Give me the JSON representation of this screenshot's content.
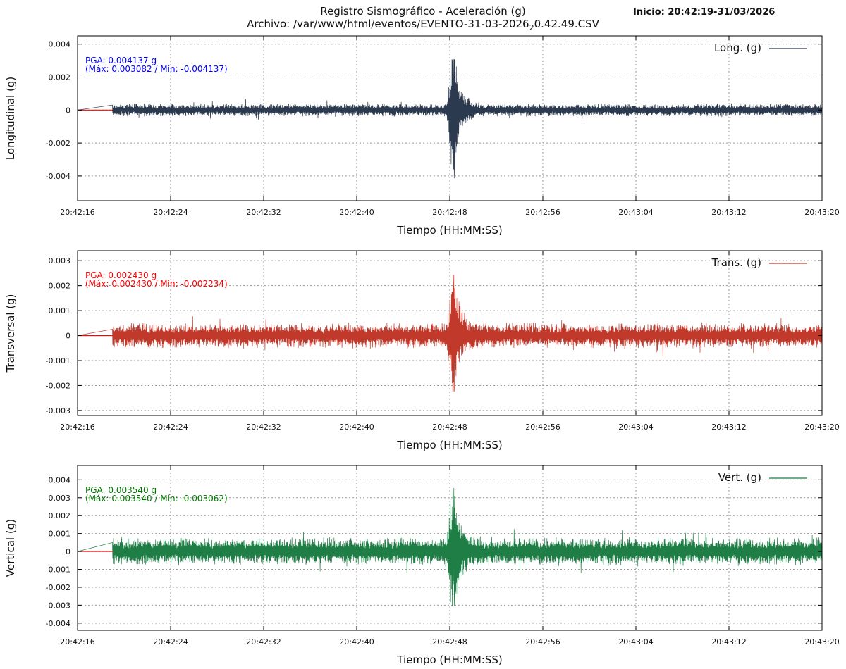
{
  "header": {
    "title": "Registro Sismográfico - Aceleración (g)",
    "file_label": "Archivo: /var/www/html/eventos/EVENTO-31-03-2026",
    "file_sub": "2",
    "file_suffix": "0.42.49.CSV",
    "start": "Inicio: 20:42:19-31/03/2026"
  },
  "chart_data": [
    {
      "type": "line",
      "ylabel": "Longitudinal (g)",
      "xlabel": "Tiempo (HH:MM:SS)",
      "legend": "Long. (g)",
      "legend_position": "top-right",
      "color": "#2b3a4e",
      "pga_text": "PGA: 0.004137 g",
      "range_text": "(Máx: 0.003082 / Mín: -0.004137)",
      "annotation_color": "#0000ff",
      "pga": 0.004137,
      "max": 0.003082,
      "min": -0.004137,
      "ylim": [
        -0.0055,
        0.0045
      ],
      "yticks": [
        0.004,
        0.002,
        0,
        -0.002,
        -0.004
      ],
      "ytick_labels": [
        "0.004",
        "0.002",
        "0",
        "-0.002",
        "-0.004"
      ],
      "noise_amplitude": 0.00035,
      "event_time_s": 32.3,
      "data_start_s": 3.0,
      "grid": true
    },
    {
      "type": "line",
      "ylabel": "Transversal (g)",
      "xlabel": "Tiempo (HH:MM:SS)",
      "legend": "Trans. (g)",
      "legend_position": "top-right",
      "color": "#c0392b",
      "pga_text": "PGA: 0.002430 g",
      "range_text": "(Máx: 0.002430 / Mín: -0.002234)",
      "annotation_color": "#ff0000",
      "pga": 0.00243,
      "max": 0.00243,
      "min": -0.002234,
      "ylim": [
        -0.0032,
        0.0034
      ],
      "yticks": [
        0.003,
        0.002,
        0.001,
        0,
        -0.001,
        -0.002,
        -0.003
      ],
      "ytick_labels": [
        "0.003",
        "0.002",
        "0.001",
        "0",
        "-0.001",
        "-0.002",
        "-0.003"
      ],
      "noise_amplitude": 0.00045,
      "event_time_s": 32.3,
      "data_start_s": 3.0,
      "grid": true
    },
    {
      "type": "line",
      "ylabel": "Vertical (g)",
      "xlabel": "Tiempo (HH:MM:SS)",
      "legend": "Vert. (g)",
      "legend_position": "top-right",
      "color": "#1e7e45",
      "pga_text": "PGA: 0.003540 g",
      "range_text": "(Máx: 0.003540 / Mín: -0.003062)",
      "annotation_color": "#007700",
      "pga": 0.00354,
      "max": 0.00354,
      "min": -0.003062,
      "ylim": [
        -0.0044,
        0.0048
      ],
      "yticks": [
        0.004,
        0.003,
        0.002,
        0.001,
        0,
        -0.001,
        -0.002,
        -0.003,
        -0.004
      ],
      "ytick_labels": [
        "0.004",
        "0.003",
        "0.002",
        "0.001",
        "0",
        "-0.001",
        "-0.002",
        "-0.003",
        "-0.004"
      ],
      "noise_amplitude": 0.0007,
      "event_time_s": 32.3,
      "data_start_s": 3.0,
      "grid": true
    }
  ],
  "x_axis": {
    "labels": [
      "20:42:16",
      "20:42:24",
      "20:42:32",
      "20:42:40",
      "20:42:48",
      "20:42:56",
      "20:43:04",
      "20:43:12",
      "20:43:20"
    ],
    "tick_seconds": [
      0,
      8,
      16,
      24,
      32,
      40,
      48,
      56,
      64
    ],
    "xlim_seconds": [
      0,
      64
    ]
  },
  "colors": {
    "frame": "#000000",
    "grid": "#999999",
    "baseline": "#ff0000",
    "text": "#111111"
  }
}
